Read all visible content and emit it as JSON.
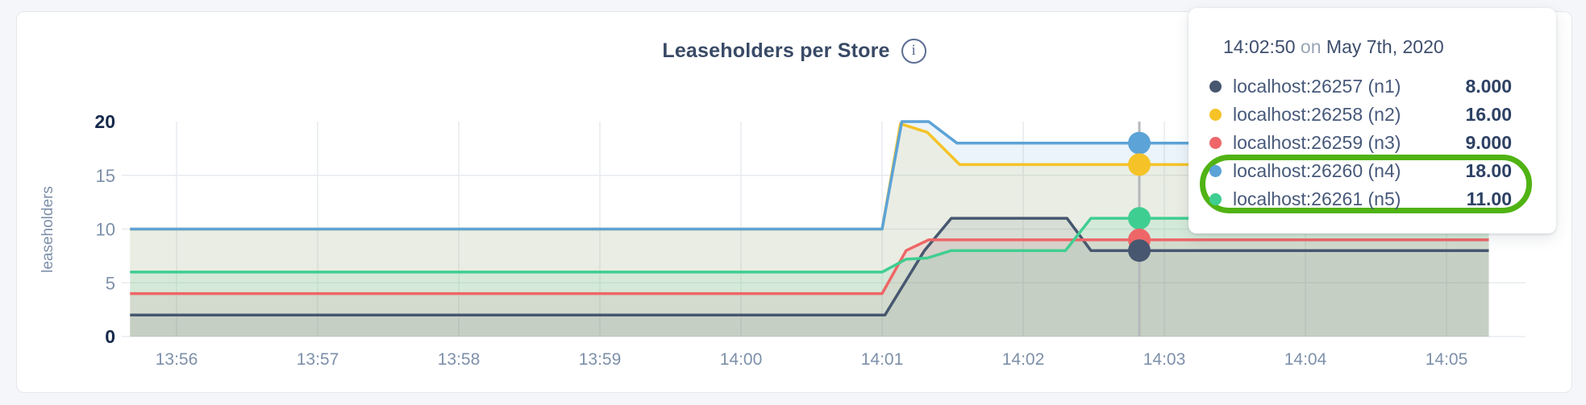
{
  "chart_data": {
    "type": "line",
    "title": "Leaseholders per Store",
    "ylabel": "leaseholders",
    "ylim": [
      0,
      20
    ],
    "grid": true,
    "y_ticks": [
      {
        "v": 0,
        "label": "0",
        "bold": true
      },
      {
        "v": 5,
        "label": "5",
        "bold": false
      },
      {
        "v": 10,
        "label": "10",
        "bold": false
      },
      {
        "v": 15,
        "label": "15",
        "bold": false
      },
      {
        "v": 20,
        "label": "20",
        "bold": true
      }
    ],
    "y_gridlines": [
      0,
      5,
      10,
      15
    ],
    "x_ticks": [
      {
        "t": 56,
        "label": "13:56"
      },
      {
        "t": 57,
        "label": "13:57"
      },
      {
        "t": 58,
        "label": "13:58"
      },
      {
        "t": 59,
        "label": "13:59"
      },
      {
        "t": 60,
        "label": "14:00"
      },
      {
        "t": 61,
        "label": "14:01"
      },
      {
        "t": 62,
        "label": "14:02"
      },
      {
        "t": 63,
        "label": "14:03"
      },
      {
        "t": 64,
        "label": "14:04"
      },
      {
        "t": 65,
        "label": "14:05"
      }
    ],
    "x_unit": "minutes after 13:00",
    "x_range": [
      55.67,
      65.3
    ],
    "series": [
      {
        "name": "localhost:26257 (n1)",
        "color": "#475770",
        "points": [
          [
            55.67,
            2
          ],
          [
            61.02,
            2
          ],
          [
            61.3,
            8
          ],
          [
            61.49,
            11
          ],
          [
            62.31,
            11
          ],
          [
            62.48,
            8
          ],
          [
            65.3,
            8
          ]
        ]
      },
      {
        "name": "localhost:26258 (n2)",
        "color": "#f5c327",
        "points": [
          [
            55.67,
            10
          ],
          [
            61.0,
            10
          ],
          [
            61.13,
            19.8
          ],
          [
            61.32,
            19
          ],
          [
            61.55,
            16
          ],
          [
            65.3,
            16
          ]
        ]
      },
      {
        "name": "localhost:26259 (n3)",
        "color": "#ee6667",
        "points": [
          [
            55.67,
            4
          ],
          [
            61.0,
            4
          ],
          [
            61.17,
            8
          ],
          [
            61.33,
            9
          ],
          [
            65.3,
            9
          ]
        ]
      },
      {
        "name": "localhost:26260 (n4)",
        "color": "#5ca3d7",
        "points": [
          [
            55.67,
            10
          ],
          [
            61.0,
            10
          ],
          [
            61.14,
            20
          ],
          [
            61.33,
            20
          ],
          [
            61.53,
            18
          ],
          [
            65.3,
            18
          ]
        ]
      },
      {
        "name": "localhost:26261 (n5)",
        "color": "#3fce91",
        "points": [
          [
            55.67,
            6
          ],
          [
            61.0,
            6
          ],
          [
            61.17,
            7.2
          ],
          [
            61.32,
            7.3
          ],
          [
            61.49,
            8
          ],
          [
            62.3,
            8
          ],
          [
            62.48,
            11
          ],
          [
            65.3,
            11
          ]
        ]
      }
    ],
    "hover": {
      "t": 62.823,
      "values": [
        8,
        16,
        9,
        18,
        11
      ]
    },
    "legend_position": "tooltip-top-right"
  },
  "header": {
    "info_icon_glyph": "i"
  },
  "tooltip": {
    "time": "14:02:50",
    "on_word": "on",
    "date": "May 7th, 2020",
    "rows": [
      {
        "label": "localhost:26257 (n1)",
        "value": "8.000",
        "color": "#475770",
        "highlighted": false
      },
      {
        "label": "localhost:26258 (n2)",
        "value": "16.00",
        "color": "#f5c327",
        "highlighted": false
      },
      {
        "label": "localhost:26259 (n3)",
        "value": "9.000",
        "color": "#ee6667",
        "highlighted": false
      },
      {
        "label": "localhost:26260 (n4)",
        "value": "18.00",
        "color": "#5ca3d7",
        "highlighted": true
      },
      {
        "label": "localhost:26261 (n5)",
        "value": "11.00",
        "color": "#3fce91",
        "highlighted": true
      }
    ],
    "annotation_ring_color": "#50b313"
  }
}
